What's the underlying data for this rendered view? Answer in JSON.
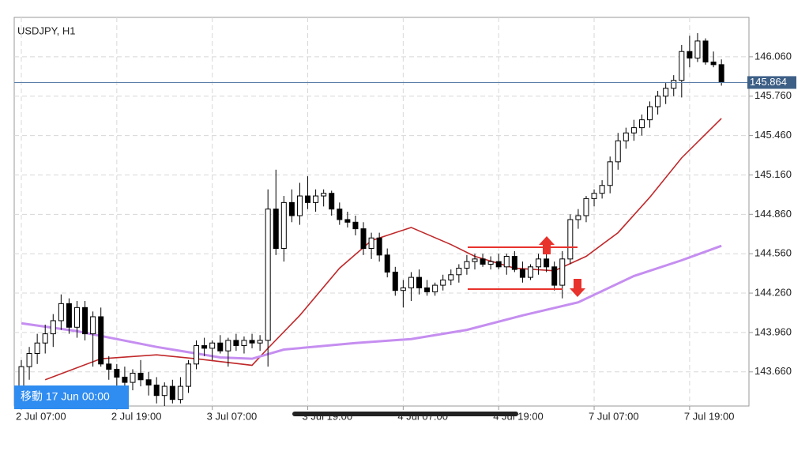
{
  "chart_data": {
    "type": "candlestick",
    "title": "USDJPY, H1",
    "categories": [
      "2 Jul 07:00",
      null,
      null,
      null,
      null,
      null,
      null,
      null,
      null,
      null,
      null,
      null,
      "2 Jul 19:00",
      null,
      null,
      null,
      null,
      null,
      null,
      null,
      null,
      null,
      null,
      null,
      "3 Jul 07:00",
      null,
      null,
      null,
      null,
      null,
      null,
      null,
      null,
      null,
      null,
      null,
      "3 Jul 19:00",
      null,
      null,
      null,
      null,
      null,
      null,
      null,
      null,
      null,
      null,
      null,
      "4 Jul 07:00",
      null,
      null,
      null,
      null,
      null,
      null,
      null,
      null,
      null,
      null,
      null,
      "4 Jul 19:00",
      null,
      null,
      null,
      null,
      null,
      null,
      null,
      null,
      null,
      null,
      null,
      "7 Jul 07:00",
      null,
      null,
      null,
      null,
      null,
      null,
      null,
      null,
      null,
      null,
      null,
      "7 Jul 19:00",
      null,
      null,
      null,
      null
    ],
    "ohlc": [
      [
        143.55,
        143.75,
        143.45,
        143.7
      ],
      [
        143.7,
        143.85,
        143.6,
        143.8
      ],
      [
        143.8,
        143.95,
        143.72,
        143.88
      ],
      [
        143.88,
        144.02,
        143.8,
        143.95
      ],
      [
        143.95,
        144.1,
        143.85,
        144.05
      ],
      [
        144.05,
        144.25,
        143.98,
        144.18
      ],
      [
        144.18,
        144.22,
        143.95,
        144.0
      ],
      [
        144.0,
        144.2,
        143.92,
        144.15
      ],
      [
        144.15,
        144.2,
        143.9,
        143.95
      ],
      [
        143.95,
        144.12,
        143.7,
        144.08
      ],
      [
        144.08,
        144.15,
        143.7,
        143.72
      ],
      [
        143.72,
        143.78,
        143.6,
        143.68
      ],
      [
        143.68,
        143.72,
        143.55,
        143.62
      ],
      [
        143.62,
        143.7,
        143.5,
        143.58
      ],
      [
        143.58,
        143.68,
        143.52,
        143.65
      ],
      [
        143.65,
        143.75,
        143.55,
        143.6
      ],
      [
        143.6,
        143.66,
        143.48,
        143.56
      ],
      [
        143.56,
        143.62,
        143.42,
        143.48
      ],
      [
        143.48,
        143.58,
        143.4,
        143.55
      ],
      [
        143.55,
        143.6,
        143.42,
        143.45
      ],
      [
        143.45,
        143.62,
        143.42,
        143.55
      ],
      [
        143.55,
        143.75,
        143.5,
        143.72
      ],
      [
        143.72,
        143.9,
        143.68,
        143.86
      ],
      [
        143.86,
        143.92,
        143.78,
        143.84
      ],
      [
        143.84,
        143.9,
        143.75,
        143.88
      ],
      [
        143.88,
        143.94,
        143.8,
        143.82
      ],
      [
        143.82,
        143.92,
        143.7,
        143.9
      ],
      [
        143.9,
        143.95,
        143.82,
        143.86
      ],
      [
        143.86,
        143.93,
        143.8,
        143.9
      ],
      [
        143.9,
        143.95,
        143.84,
        143.88
      ],
      [
        143.88,
        143.94,
        143.82,
        143.9
      ],
      [
        143.9,
        145.05,
        143.7,
        144.9
      ],
      [
        144.9,
        145.2,
        144.55,
        144.6
      ],
      [
        144.6,
        145.0,
        144.5,
        144.95
      ],
      [
        144.95,
        145.05,
        144.8,
        144.85
      ],
      [
        144.85,
        145.1,
        144.78,
        145.0
      ],
      [
        145.0,
        145.15,
        144.9,
        144.95
      ],
      [
        144.95,
        145.05,
        144.88,
        145.0
      ],
      [
        145.0,
        145.05,
        144.92,
        145.02
      ],
      [
        145.02,
        145.04,
        144.85,
        144.9
      ],
      [
        144.9,
        144.95,
        144.78,
        144.82
      ],
      [
        144.82,
        144.88,
        144.76,
        144.8
      ],
      [
        144.8,
        144.85,
        144.7,
        144.75
      ],
      [
        144.75,
        144.8,
        144.55,
        144.6
      ],
      [
        144.6,
        144.72,
        144.52,
        144.68
      ],
      [
        144.68,
        144.72,
        144.5,
        144.55
      ],
      [
        144.55,
        144.6,
        144.38,
        144.42
      ],
      [
        144.42,
        144.46,
        144.24,
        144.28
      ],
      [
        144.28,
        144.36,
        144.15,
        144.3
      ],
      [
        144.3,
        144.42,
        144.2,
        144.38
      ],
      [
        144.38,
        144.44,
        144.25,
        144.3
      ],
      [
        144.3,
        144.36,
        144.24,
        144.27
      ],
      [
        144.27,
        144.34,
        144.24,
        144.32
      ],
      [
        144.32,
        144.4,
        144.28,
        144.36
      ],
      [
        144.36,
        144.44,
        144.32,
        144.4
      ],
      [
        144.4,
        144.48,
        144.34,
        144.45
      ],
      [
        144.45,
        144.55,
        144.4,
        144.5
      ],
      [
        144.5,
        144.56,
        144.44,
        144.52
      ],
      [
        144.52,
        144.56,
        144.46,
        144.48
      ],
      [
        144.48,
        144.54,
        144.44,
        144.5
      ],
      [
        144.5,
        144.56,
        144.44,
        144.46
      ],
      [
        144.46,
        144.56,
        144.4,
        144.54
      ],
      [
        144.54,
        144.58,
        144.42,
        144.44
      ],
      [
        144.44,
        144.5,
        144.34,
        144.38
      ],
      [
        144.38,
        144.48,
        144.36,
        144.46
      ],
      [
        144.46,
        144.56,
        144.4,
        144.52
      ],
      [
        144.52,
        144.56,
        144.42,
        144.46
      ],
      [
        144.46,
        144.5,
        144.28,
        144.32
      ],
      [
        144.32,
        144.58,
        144.22,
        144.52
      ],
      [
        144.52,
        144.86,
        144.48,
        144.82
      ],
      [
        144.82,
        144.9,
        144.75,
        144.85
      ],
      [
        144.85,
        145.0,
        144.8,
        144.98
      ],
      [
        144.98,
        145.05,
        144.92,
        145.02
      ],
      [
        145.02,
        145.12,
        144.98,
        145.08
      ],
      [
        145.08,
        145.3,
        145.02,
        145.26
      ],
      [
        145.26,
        145.48,
        145.2,
        145.42
      ],
      [
        145.42,
        145.52,
        145.36,
        145.48
      ],
      [
        145.48,
        145.58,
        145.42,
        145.52
      ],
      [
        145.52,
        145.62,
        145.46,
        145.58
      ],
      [
        145.58,
        145.72,
        145.52,
        145.68
      ],
      [
        145.68,
        145.8,
        145.62,
        145.76
      ],
      [
        145.76,
        145.86,
        145.7,
        145.82
      ],
      [
        145.82,
        145.92,
        145.76,
        145.88
      ],
      [
        145.88,
        146.15,
        145.75,
        146.1
      ],
      [
        146.1,
        146.22,
        145.98,
        146.05
      ],
      [
        146.05,
        146.24,
        146.02,
        146.18
      ],
      [
        146.18,
        146.2,
        146.0,
        146.02
      ],
      [
        146.02,
        146.1,
        145.98,
        146.0
      ],
      [
        146.0,
        146.04,
        145.84,
        145.864
      ]
    ],
    "lines": [
      {
        "color": "#c0282a",
        "x": [
          3,
          10,
          17,
          22,
          29,
          31,
          35,
          40,
          44,
          49,
          54,
          57,
          62,
          67,
          71,
          75,
          79,
          83,
          88
        ],
        "values": [
          143.6,
          143.76,
          143.79,
          143.76,
          143.71,
          143.84,
          144.09,
          144.45,
          144.66,
          144.76,
          144.63,
          144.54,
          144.45,
          144.43,
          144.54,
          144.72,
          144.99,
          145.29,
          145.59
        ]
      },
      {
        "color": "#c58ef0",
        "x": [
          0,
          7,
          17,
          25,
          29,
          33,
          42,
          49,
          56,
          63,
          70,
          77,
          83,
          88
        ],
        "values": [
          144.03,
          143.97,
          143.85,
          143.77,
          143.76,
          143.83,
          143.88,
          143.91,
          143.98,
          144.09,
          144.19,
          144.39,
          144.51,
          144.62
        ]
      }
    ],
    "current_price": 145.864,
    "ylim": [
      143.4,
      146.36
    ],
    "yticks": [
      {
        "value": 143.66,
        "label": "143.660"
      },
      {
        "value": 143.96,
        "label": "143.960"
      },
      {
        "value": 144.26,
        "label": "144.260"
      },
      {
        "value": 144.56,
        "label": "144.560"
      },
      {
        "value": 144.86,
        "label": "144.860"
      },
      {
        "value": 145.16,
        "label": "145.160"
      },
      {
        "value": 145.46,
        "label": "145.460"
      },
      {
        "value": 145.76,
        "label": "145.760"
      },
      {
        "value": 146.06,
        "label": "146.060"
      }
    ],
    "grid": true
  },
  "ui": {
    "scroll_label": "移動 17 Jun 00:00"
  }
}
